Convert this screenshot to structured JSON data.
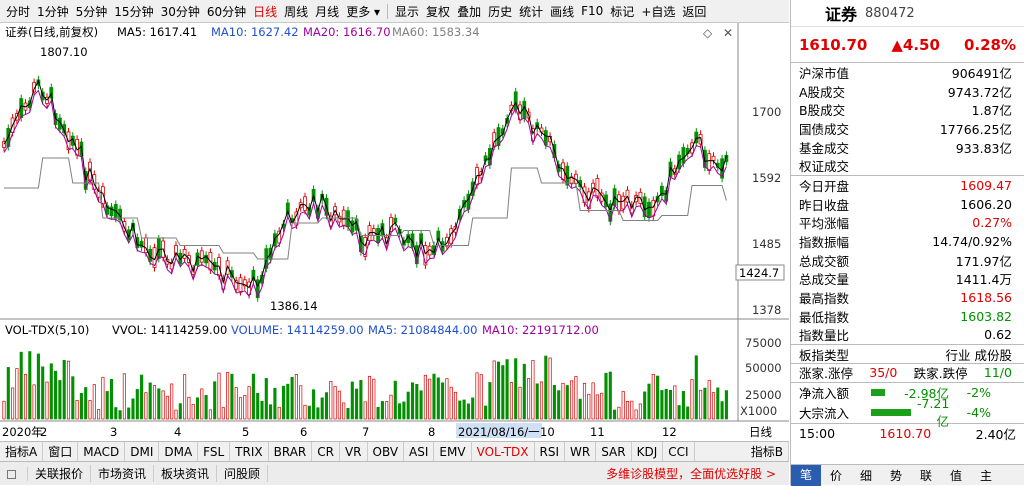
{
  "toolbar": {
    "items": [
      "分时",
      "1分钟",
      "5分钟",
      "15分钟",
      "30分钟",
      "60分钟",
      "日线",
      "周线",
      "月线",
      "更多 ▾"
    ],
    "active": "日线",
    "items2": [
      "显示",
      "复权",
      "叠加",
      "历史",
      "统计",
      "画线",
      "F10",
      "标记",
      "+自选",
      "返回"
    ]
  },
  "kline": {
    "title": "证券(日线,前复权)",
    "ma5": "MA5: 1617.41",
    "ma10": "MA10: 1627.42",
    "ma20": "MA20: 1616.70",
    "ma60": "MA60: 1583.34",
    "high_label": "1807.10",
    "low_label": "1386.14",
    "y_ticks": [
      "1700",
      "1592",
      "1485",
      "1378"
    ],
    "cur": "1424.7"
  },
  "vol": {
    "title": "VOL-TDX(5,10)",
    "vvol": "VVOL: 14114259.00",
    "volume": "VOLUME: 14114259.00",
    "ma5": "MA5: 21084844.00",
    "ma10": "MA10: 22191712.00",
    "y_ticks": [
      "75000",
      "50000",
      "25000"
    ],
    "unit": "X1000"
  },
  "xaxis": {
    "labels": [
      "2020年",
      "2",
      "3",
      "4",
      "5",
      "6",
      "7",
      "8",
      "2021/08/16/一",
      "10",
      "11",
      "12"
    ],
    "period": "日线"
  },
  "indicator_tabs": [
    "指标A",
    "窗口",
    "MACD",
    "DMI",
    "DMA",
    "FSL",
    "TRIX",
    "BRAR",
    "CR",
    "VR",
    "OBV",
    "ASI",
    "EMV",
    "VOL-TDX",
    "RSI",
    "WR",
    "SAR",
    "KDJ",
    "CCI"
  ],
  "indicator_active": "VOL-TDX",
  "indicator_b": "指标B",
  "status": {
    "items": [
      "关联报价",
      "市场资讯",
      "板块资讯",
      "问股顾"
    ],
    "ad": "多维诊股模型，全面优选好股 >"
  },
  "panel": {
    "name": "证券",
    "code": "880472",
    "price": "1610.70",
    "change": "▲4.50",
    "pct": "0.28%",
    "g1": [
      [
        "沪深市值",
        "906491亿"
      ],
      [
        "A股成交",
        "9743.72亿"
      ],
      [
        "B股成交",
        "1.87亿"
      ],
      [
        "国债成交",
        "17766.25亿"
      ],
      [
        "基金成交",
        "933.83亿"
      ],
      [
        "权证成交",
        ""
      ]
    ],
    "g2": [
      [
        "今日开盘",
        "1609.47",
        "red"
      ],
      [
        "昨日收盘",
        "1606.20",
        ""
      ],
      [
        "平均涨幅",
        "0.27%",
        "red"
      ],
      [
        "指数振幅",
        "14.74/0.92%",
        ""
      ],
      [
        "总成交额",
        "171.97亿",
        ""
      ],
      [
        "总成交量",
        "1411.4万",
        ""
      ],
      [
        "最高指数",
        "1618.56",
        "red"
      ],
      [
        "最低指数",
        "1603.82",
        "grn"
      ],
      [
        "指数量比",
        "0.62",
        ""
      ]
    ],
    "type_label": "板指类型",
    "type_val": "行业 成份股",
    "zd_label": "涨家.涨停",
    "zd_val": "35/0",
    "dd_label": "跌家.跌停",
    "dd_val": "11/0",
    "flow1": {
      "label": "净流入额",
      "v1": "-2.98亿",
      "v2": "-2%"
    },
    "flow2": {
      "label": "大宗流入",
      "v1": "-7.21亿",
      "v2": "-4%"
    },
    "tick": {
      "time": "15:00",
      "price": "1610.70",
      "vol": "2.40亿"
    },
    "tabs": [
      "笔",
      "价",
      "细",
      "势",
      "联",
      "值",
      "主"
    ]
  },
  "colors": {
    "up": "#e00000",
    "down": "#009000",
    "ma5": "#000000",
    "ma10": "#2050d0",
    "ma20": "#a000a0",
    "ma60": "#808080"
  }
}
